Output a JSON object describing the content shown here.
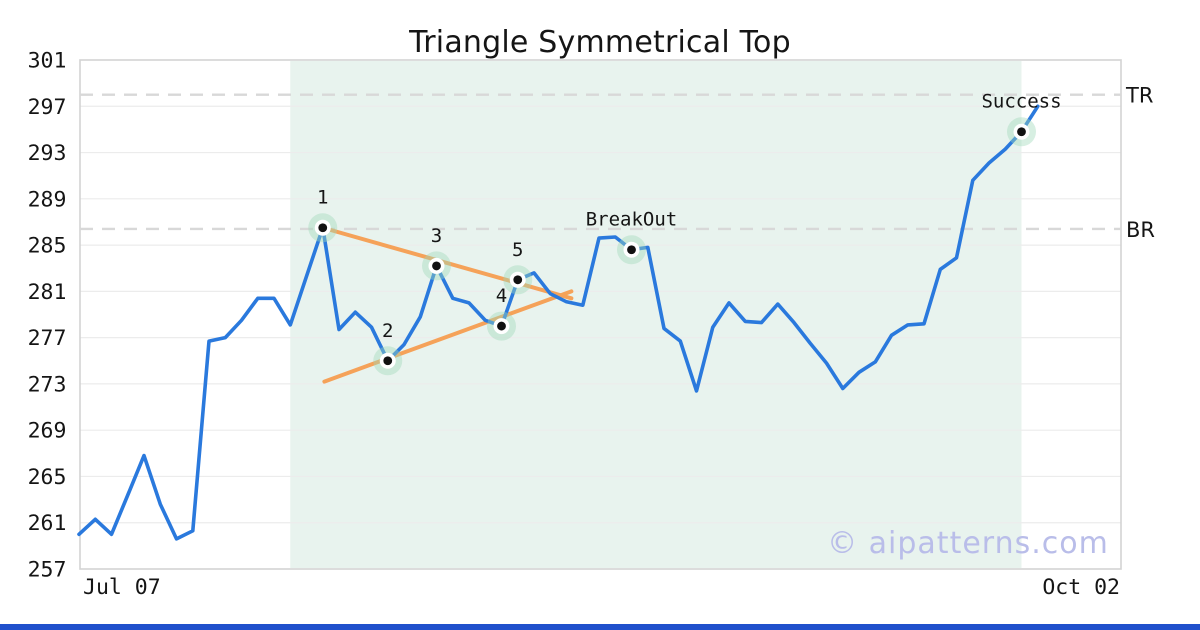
{
  "title": "Triangle Symmetrical Top",
  "watermark": "© aipatterns.com",
  "x_axis": {
    "labels": [
      "Jul 07",
      "Oct 02"
    ]
  },
  "y_axis": {
    "ticks": [
      301,
      297,
      293,
      289,
      285,
      281,
      277,
      273,
      269,
      265,
      261,
      257
    ]
  },
  "levels": {
    "tr": {
      "label": "TR",
      "price": 298.0
    },
    "br": {
      "label": "BR",
      "price": 286.4
    }
  },
  "colors": {
    "line": "#2a79dd",
    "trendline": "#f5a259",
    "region": "#e8f3ee",
    "grid": "#ececec",
    "border": "#d3d3d3",
    "dashed_level": "#d8d8d8",
    "halo": "#9fd8ba",
    "dot": "#111111",
    "text": "#151515",
    "watermark": "#b9bde9",
    "footer_bar": "#2050cc"
  },
  "chart_data": {
    "type": "line",
    "title": "Triangle Symmetrical Top",
    "xlabel": "",
    "ylabel": "",
    "x_start_label": "Jul 07",
    "x_end_label": "Oct 02",
    "ylim": [
      257,
      301
    ],
    "grid": "horizontal",
    "gridline_prices": [
      261,
      265,
      269,
      273,
      277,
      281,
      285,
      289,
      293,
      297
    ],
    "prices": [
      260.0,
      261.3,
      260.0,
      263.4,
      266.8,
      262.6,
      259.6,
      260.3,
      276.7,
      277.0,
      278.5,
      280.4,
      280.4,
      278.1,
      282.3,
      286.5,
      277.7,
      279.2,
      277.9,
      275.0,
      276.4,
      278.8,
      283.2,
      280.4,
      280.0,
      278.5,
      278.0,
      282.0,
      282.6,
      280.8,
      280.1,
      279.8,
      285.6,
      285.7,
      284.6,
      284.8,
      277.8,
      276.7,
      272.4,
      277.9,
      280.0,
      278.4,
      278.3,
      279.9,
      278.3,
      276.5,
      274.8,
      272.6,
      274.0,
      274.9,
      277.2,
      278.1,
      278.2,
      282.9,
      283.9,
      290.6,
      292.1,
      293.3,
      294.8,
      297.0
    ],
    "markers": [
      {
        "index": 15,
        "label": "1",
        "price": 286.5
      },
      {
        "index": 19,
        "label": "2",
        "price": 275.0
      },
      {
        "index": 22,
        "label": "3",
        "price": 283.2
      },
      {
        "index": 26,
        "label": "4",
        "price": 278.0
      },
      {
        "index": 27,
        "label": "5",
        "price": 282.0
      },
      {
        "index": 34,
        "label": "BreakOut",
        "price": 284.6
      },
      {
        "index": 58,
        "label": "Success",
        "price": 294.8
      }
    ],
    "trendlines": [
      {
        "name": "upper-converging",
        "i1": 15.0,
        "p1": 286.5,
        "i2": 30.3,
        "p2": 280.4
      },
      {
        "name": "lower-converging",
        "i1": 15.1,
        "p1": 273.2,
        "i2": 30.3,
        "p2": 281.0
      }
    ],
    "levels": [
      {
        "label": "TR",
        "price": 298.0
      },
      {
        "label": "BR",
        "price": 286.4
      }
    ],
    "highlight_region": {
      "from_index": 13,
      "to_index": 58
    },
    "legend": "none"
  }
}
